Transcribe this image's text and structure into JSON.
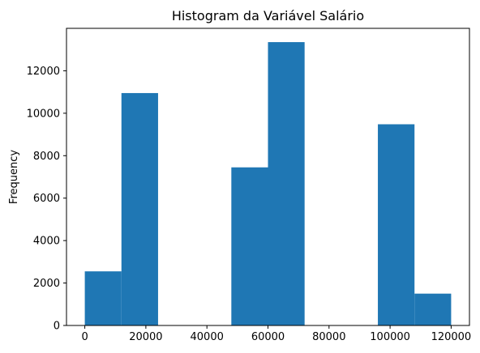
{
  "chart_data": {
    "type": "bar",
    "title": "Histogram da Variável Salário",
    "xlabel": "",
    "ylabel": "Frequency",
    "bins": [
      {
        "x0": 0,
        "x1": 12000,
        "count": 2550
      },
      {
        "x0": 12000,
        "x1": 24000,
        "count": 10950
      },
      {
        "x0": 24000,
        "x1": 36000,
        "count": 0
      },
      {
        "x0": 36000,
        "x1": 48000,
        "count": 0
      },
      {
        "x0": 48000,
        "x1": 60000,
        "count": 7450
      },
      {
        "x0": 60000,
        "x1": 72000,
        "count": 13350
      },
      {
        "x0": 72000,
        "x1": 84000,
        "count": 0
      },
      {
        "x0": 84000,
        "x1": 96000,
        "count": 0
      },
      {
        "x0": 96000,
        "x1": 108000,
        "count": 9480
      },
      {
        "x0": 108000,
        "x1": 120000,
        "count": 1500
      }
    ],
    "xlim": [
      -6000,
      126000
    ],
    "ylim": [
      0,
      14000
    ],
    "x_ticks": [
      0,
      20000,
      40000,
      60000,
      80000,
      100000,
      120000
    ],
    "y_ticks": [
      0,
      2000,
      4000,
      6000,
      8000,
      10000,
      12000
    ],
    "bar_color": "#1f77b4",
    "grid": false
  }
}
